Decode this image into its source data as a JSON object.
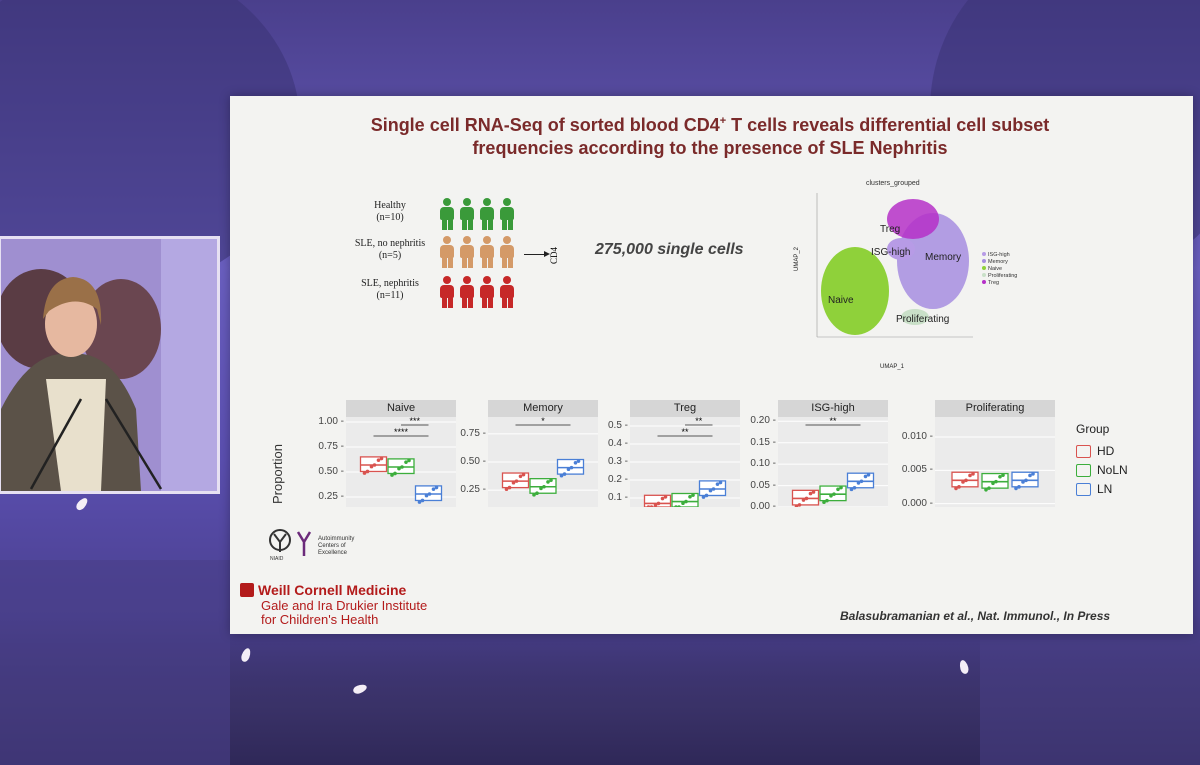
{
  "slide": {
    "title_line1": "Single cell RNA-Seq of sorted blood CD4",
    "title_sup": "+",
    "title_line1b": " T cells reveals differential cell subset",
    "title_line2": "frequencies according to the presence of SLE Nephritis",
    "cohorts": [
      {
        "label": "Healthy",
        "n": "(n=10)",
        "color": "#3a9a3a"
      },
      {
        "label": "SLE, no nephritis",
        "n": "(n=5)",
        "color": "#d49a68"
      },
      {
        "label": "SLE, nephritis",
        "n": "(n=11)",
        "color": "#c62828"
      }
    ],
    "cd4_label": "CD4",
    "cells_text": "275,000 single cells",
    "umap": {
      "title": "clusters_grouped",
      "clusters": [
        "Treg",
        "ISG-high",
        "Memory",
        "Naive",
        "Proliferating"
      ],
      "legend": [
        "ISG-high",
        "Memory",
        "Naive",
        "Proliferating",
        "Treg"
      ],
      "x_axis": "UMAP_1",
      "y_axis": "UMAP_2"
    },
    "y_axis_label": "Proportion",
    "panels": [
      {
        "name": "Naive",
        "ticks": [
          "1.00",
          "0.75",
          "0.50",
          "0.25"
        ],
        "sig": [
          "***",
          "****"
        ]
      },
      {
        "name": "Memory",
        "ticks": [
          "0.75",
          "0.50",
          "0.25"
        ],
        "sig": [
          "*"
        ]
      },
      {
        "name": "Treg",
        "ticks": [
          "0.5",
          "0.4",
          "0.3",
          "0.2",
          "0.1"
        ],
        "sig": [
          "**",
          "**"
        ]
      },
      {
        "name": "ISG-high",
        "ticks": [
          "0.20",
          "0.15",
          "0.10",
          "0.05",
          "0.00"
        ],
        "sig": [
          "**"
        ]
      },
      {
        "name": "Proliferating",
        "ticks": [
          "0.010",
          "0.005",
          "0.000"
        ],
        "sig": []
      }
    ],
    "legend": {
      "title": "Group",
      "items": [
        {
          "label": "HD",
          "color": "#d9534f"
        },
        {
          "label": "NoLN",
          "color": "#3cae3c"
        },
        {
          "label": "LN",
          "color": "#4a7fd6"
        }
      ]
    },
    "niaid": "NIAID",
    "ace_text": "Autoimmunity Centers of Excellence",
    "institution": "Weill Cornell Medicine",
    "institute_line1": "Gale and Ira Drukier Institute",
    "institute_line2": "for Children's Health",
    "citation": "Balasubramanian et al., Nat. Immunol., In Press"
  },
  "chart_data": [
    {
      "type": "box",
      "title": "Naive",
      "ylabel": "Proportion",
      "categories": [
        "HD",
        "NoLN",
        "LN"
      ],
      "medians": [
        0.57,
        0.55,
        0.28
      ],
      "ylim": [
        0.15,
        1.05
      ]
    },
    {
      "type": "box",
      "title": "Memory",
      "categories": [
        "HD",
        "NoLN",
        "LN"
      ],
      "medians": [
        0.33,
        0.28,
        0.45
      ],
      "ylim": [
        0.1,
        0.9
      ]
    },
    {
      "type": "box",
      "title": "Treg",
      "categories": [
        "HD",
        "NoLN",
        "LN"
      ],
      "medians": [
        0.07,
        0.08,
        0.15
      ],
      "ylim": [
        0.05,
        0.55
      ]
    },
    {
      "type": "box",
      "title": "ISG-high",
      "categories": [
        "HD",
        "NoLN",
        "LN"
      ],
      "medians": [
        0.02,
        0.03,
        0.06
      ],
      "ylim": [
        0.0,
        0.21
      ]
    },
    {
      "type": "box",
      "title": "Proliferating",
      "categories": [
        "HD",
        "NoLN",
        "LN"
      ],
      "medians": [
        0.0035,
        0.0033,
        0.0035
      ],
      "ylim": [
        -0.0005,
        0.013
      ]
    }
  ]
}
